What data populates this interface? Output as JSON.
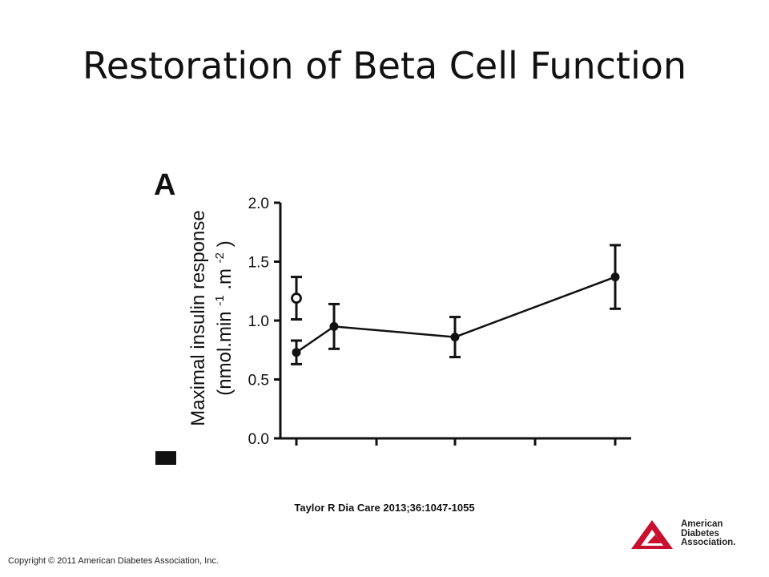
{
  "slide": {
    "title": "Restoration of Beta Cell Function",
    "citation": "Taylor R Dia Care 2013;36:1047-1055",
    "copyright": "Copyright © 2011 American Diabetes Association, Inc."
  },
  "logo": {
    "line1": "American",
    "line2": "Diabetes",
    "line3": "Association.",
    "color": "#c8102e"
  },
  "chart_data": {
    "type": "line",
    "panel_label": "A",
    "ylabel_line1": "Maximal insulin response",
    "ylabel_line2_parts": [
      "(nmol.min",
      "-1",
      ".m",
      "-2",
      ")"
    ],
    "ylim": [
      0,
      2.0
    ],
    "yticks": [
      "0.0",
      "0.5",
      "1.0",
      "1.5",
      "2.0"
    ],
    "x_tick_count": 5,
    "series": [
      {
        "marker": "filled-circle",
        "connected": true,
        "points": [
          {
            "x": 0,
            "y": 0.73,
            "err_low": 0.63,
            "err_high": 0.83
          },
          {
            "x": 0.5,
            "y": 0.95,
            "err_low": 0.76,
            "err_high": 1.14
          },
          {
            "x": 2,
            "y": 0.86,
            "err_low": 0.69,
            "err_high": 1.03
          },
          {
            "x": 4,
            "y": 1.37,
            "err_low": 1.1,
            "err_high": 1.64
          }
        ]
      },
      {
        "marker": "open-circle",
        "connected": false,
        "points": [
          {
            "x": 0,
            "y": 1.19,
            "err_low": 1.01,
            "err_high": 1.37
          }
        ]
      }
    ]
  }
}
